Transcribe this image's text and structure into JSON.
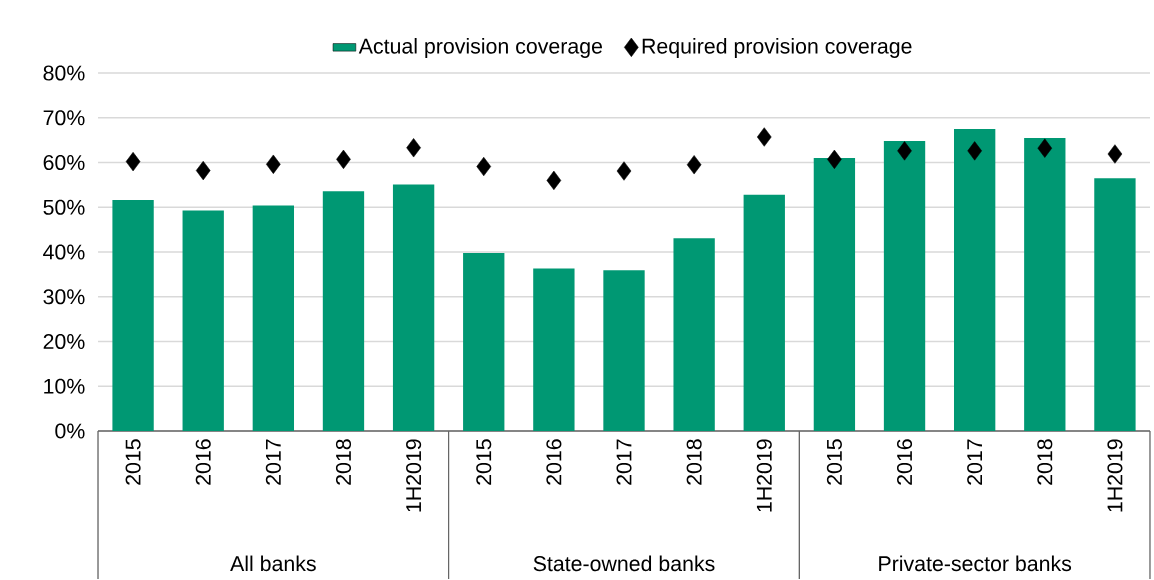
{
  "chart_data": {
    "type": "bar",
    "categories": [
      "2015",
      "2016",
      "2017",
      "2018",
      "1H2019",
      "2015",
      "2016",
      "2017",
      "2018",
      "1H2019",
      "2015",
      "2016",
      "2017",
      "2018",
      "1H2019"
    ],
    "series": [
      {
        "name": "Actual provision coverage",
        "color": "#009873",
        "values": [
          51.6,
          49.3,
          50.4,
          53.6,
          55.1,
          39.8,
          36.3,
          35.9,
          43.1,
          52.8,
          61.0,
          64.8,
          67.5,
          65.5,
          56.5
        ]
      },
      {
        "name": "Required provision coverage",
        "type": "scatter",
        "marker": "diamond",
        "color": "#000000",
        "values": [
          60.2,
          58.2,
          59.6,
          60.7,
          63.3,
          59.1,
          56.0,
          58.1,
          59.5,
          65.7,
          60.7,
          62.6,
          62.6,
          63.2,
          61.9
        ]
      }
    ],
    "ylim": [
      0,
      80
    ],
    "yticks": [
      {
        "value": 0,
        "label": "0%"
      },
      {
        "value": 10,
        "label": "10%"
      },
      {
        "value": 20,
        "label": "20%"
      },
      {
        "value": 30,
        "label": "30%"
      },
      {
        "value": 40,
        "label": "40%"
      },
      {
        "value": 50,
        "label": "50%"
      },
      {
        "value": 60,
        "label": "60%"
      },
      {
        "value": 70,
        "label": "70%"
      },
      {
        "value": 80,
        "label": "80%"
      }
    ],
    "grid": "y",
    "legend": "top",
    "annotations": [
      "All banks",
      "State-owned banks",
      "Private-sector banks"
    ]
  }
}
